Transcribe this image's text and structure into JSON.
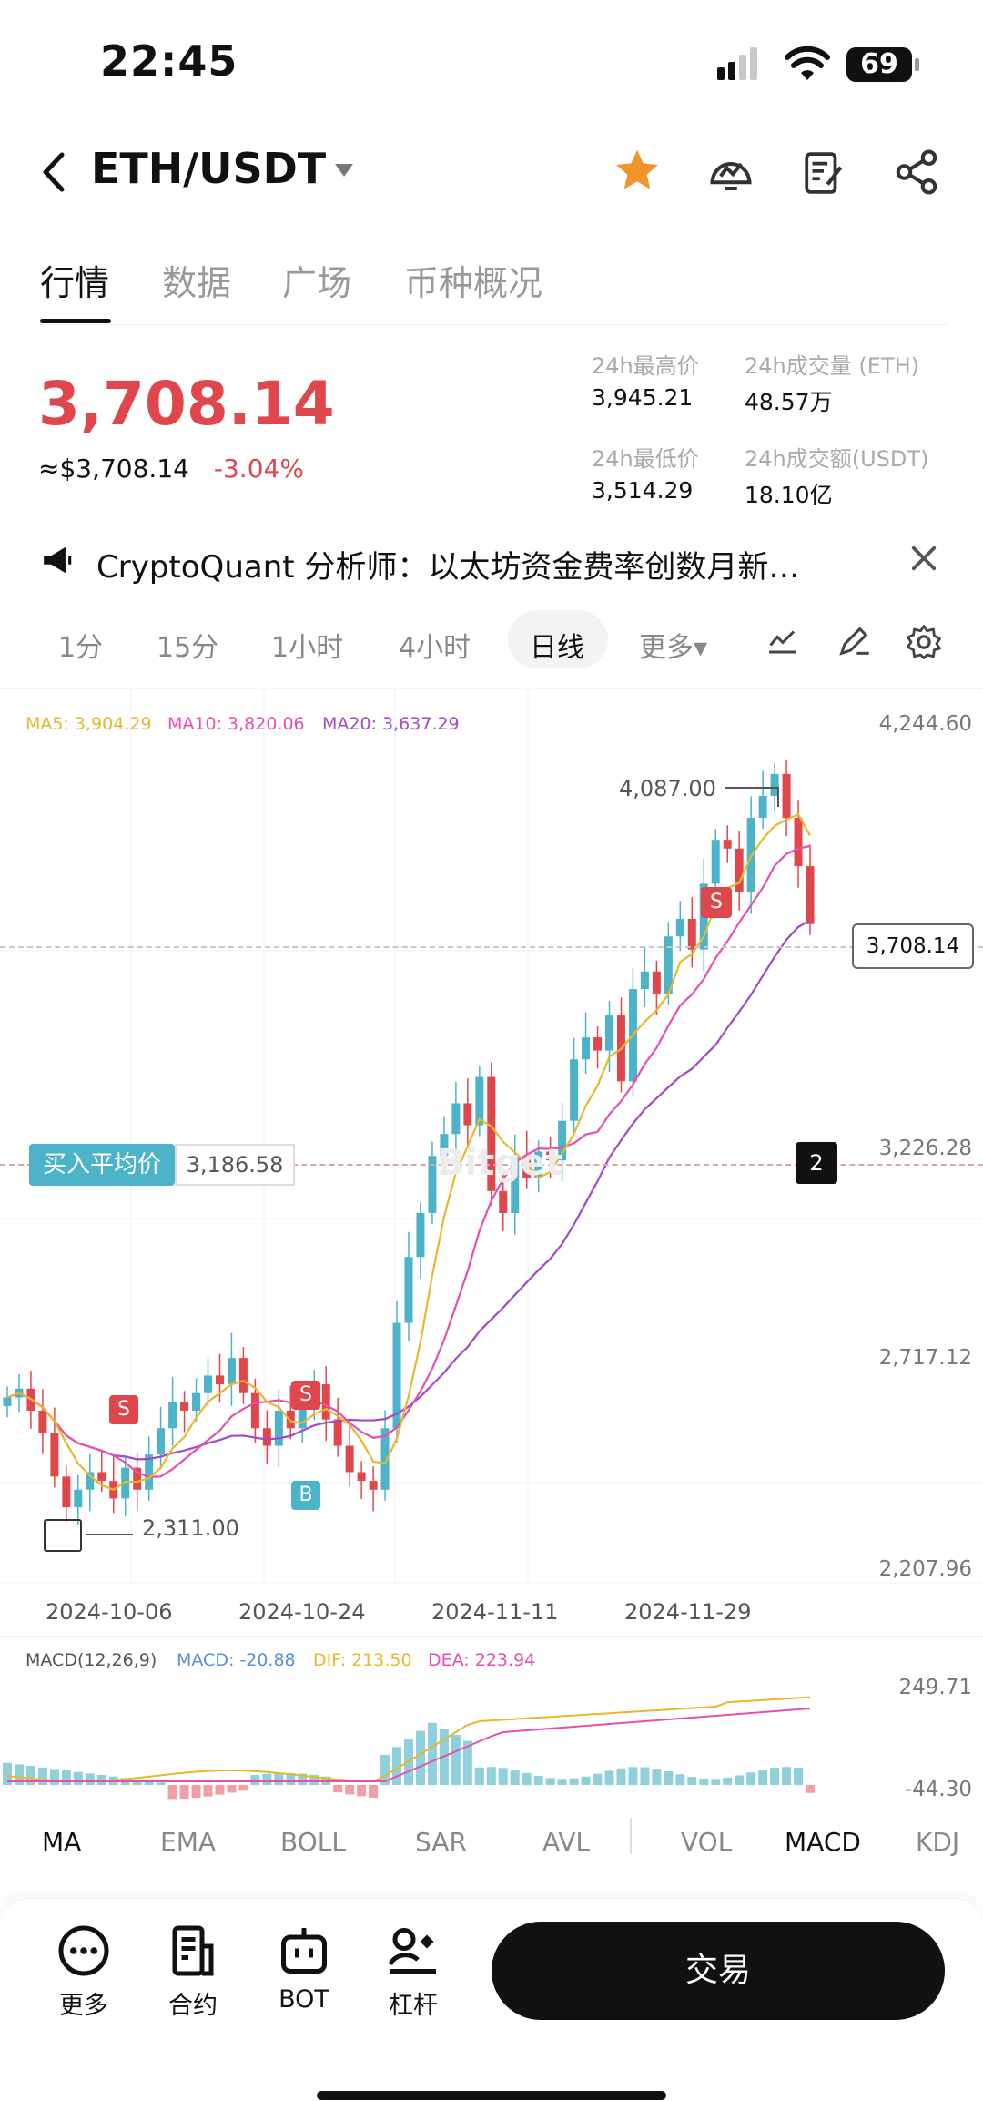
{
  "status": {
    "time": "22:45",
    "battery": "69"
  },
  "header": {
    "pair": "ETH/USDT"
  },
  "tabs": [
    {
      "label": "行情"
    },
    {
      "label": "数据"
    },
    {
      "label": "广场"
    },
    {
      "label": "币种概况"
    }
  ],
  "ticker": {
    "price": "3,708.14",
    "usd": "≈$3,708.14",
    "change": "-3.04%",
    "high_label": "24h最高价",
    "high": "3,945.21",
    "low_label": "24h最低价",
    "low": "3,514.29",
    "vol_label": "24h成交量 (ETH)",
    "vol": "48.57万",
    "amt_label": "24h成交额(USDT)",
    "amt": "18.10亿"
  },
  "news": {
    "text": "CryptoQuant 分析师：以太坊资金费率创数月新…"
  },
  "intervals": [
    {
      "label": "1分"
    },
    {
      "label": "15分"
    },
    {
      "label": "1小时"
    },
    {
      "label": "4小时"
    },
    {
      "label": "日线"
    },
    {
      "label": "更多▾"
    }
  ],
  "ma_legend": {
    "ma5": "MA5: 3,904.29",
    "ma10": "MA10: 3,820.06",
    "ma20": "MA20: 3,637.29"
  },
  "chart_labels": {
    "high_marker": "4,087.00",
    "low_marker": "2,311.00",
    "current_tag": "3,708.14",
    "avg_label": "买入平均价",
    "avg_value": "3,186.58",
    "avg_count": "2",
    "watermark": "Bitget"
  },
  "chart_data": [
    {
      "type": "candlestick",
      "title": "",
      "x_ticks": [
        "2024-10-06",
        "2024-10-24",
        "2024-11-11",
        "2024-11-29"
      ],
      "y_ticks": [
        "4,244.60",
        "3,226.28",
        "2,717.12",
        "2,207.96"
      ],
      "ylim": [
        2207.96,
        4244.6
      ],
      "series": [
        {
          "name": "MA5",
          "last": 3904.29
        },
        {
          "name": "MA10",
          "last": 3820.06
        },
        {
          "name": "MA20",
          "last": 3637.29
        }
      ],
      "annotations": [
        "4,087.00",
        "2,311.00",
        "3,708.14",
        "买入平均价 3,186.58"
      ],
      "markers": [
        "S",
        "S",
        "S",
        "B"
      ],
      "colors": {
        "up": "#4db3c8",
        "down": "#e0474c",
        "ma5": "#e6b82e",
        "ma10": "#e64fb0",
        "ma20": "#a348c8"
      }
    },
    {
      "type": "bar",
      "title": "MACD(12,26,9)",
      "series_labels": [
        "MACD: -20.88",
        "DIF: 213.50",
        "DEA: 223.94"
      ],
      "y_ticks": [
        "249.71",
        "-44.30"
      ],
      "ylim": [
        -44.3,
        249.71
      ]
    }
  ],
  "macd_legend": {
    "title": "MACD(12,26,9)",
    "macd": "MACD: -20.88",
    "dif": "DIF: 213.50",
    "dea": "DEA: 223.94"
  },
  "macd_axis": {
    "top": "249.71",
    "bottom": "-44.30"
  },
  "indicators": [
    {
      "label": "MA"
    },
    {
      "label": "EMA"
    },
    {
      "label": "BOLL"
    },
    {
      "label": "SAR"
    },
    {
      "label": "AVL"
    },
    {
      "label": "VOL"
    },
    {
      "label": "MACD"
    },
    {
      "label": "KDJ"
    }
  ],
  "bottom_nav": [
    {
      "label": "更多"
    },
    {
      "label": "合约"
    },
    {
      "label": "BOT"
    },
    {
      "label": "杠杆"
    }
  ],
  "trade_button": "交易"
}
